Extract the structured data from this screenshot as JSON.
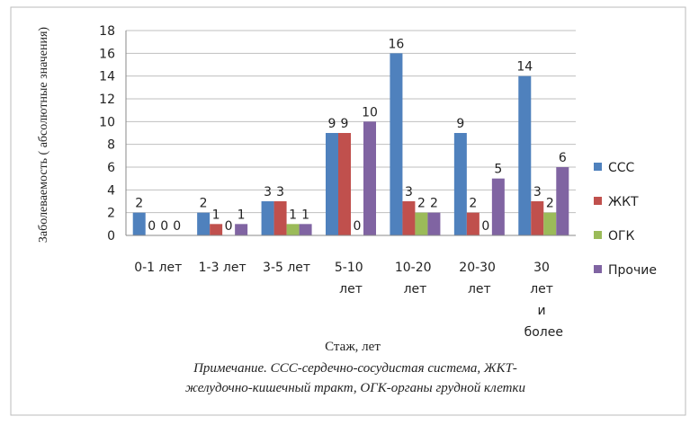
{
  "chart_data": {
    "type": "bar",
    "y_label": "Заболеваемость ( абсолютные значения)",
    "x_label": "Стаж, лет",
    "note": [
      "Примечание. ССС-сердечно-сосудистая система, ЖКТ-",
      "желудочно-кишечный тракт,  ОГК-органы грудной клетки"
    ],
    "categories": [
      "0-1 лет",
      "1-3 лет",
      "3-5 лет",
      "5-10 лет",
      "10-20 лет",
      "20-30 лет",
      "30 лет и более"
    ],
    "series": [
      {
        "name": "ССС",
        "color": "#4f81bd",
        "values": [
          2,
          2,
          3,
          9,
          16,
          9,
          14
        ]
      },
      {
        "name": "ЖКТ",
        "color": "#c0504d",
        "values": [
          0,
          1,
          3,
          9,
          3,
          2,
          3
        ]
      },
      {
        "name": "ОГК",
        "color": "#9bbb59",
        "values": [
          0,
          0,
          1,
          0,
          2,
          0,
          2
        ]
      },
      {
        "name": "Прочие",
        "color": "#8064a2",
        "values": [
          0,
          1,
          1,
          10,
          2,
          5,
          6
        ]
      }
    ],
    "ylim": [
      0,
      18
    ],
    "yticks": [
      0,
      2,
      4,
      6,
      8,
      10,
      12,
      14,
      16,
      18
    ],
    "grid": true,
    "legend": "right",
    "data_labels": true
  }
}
